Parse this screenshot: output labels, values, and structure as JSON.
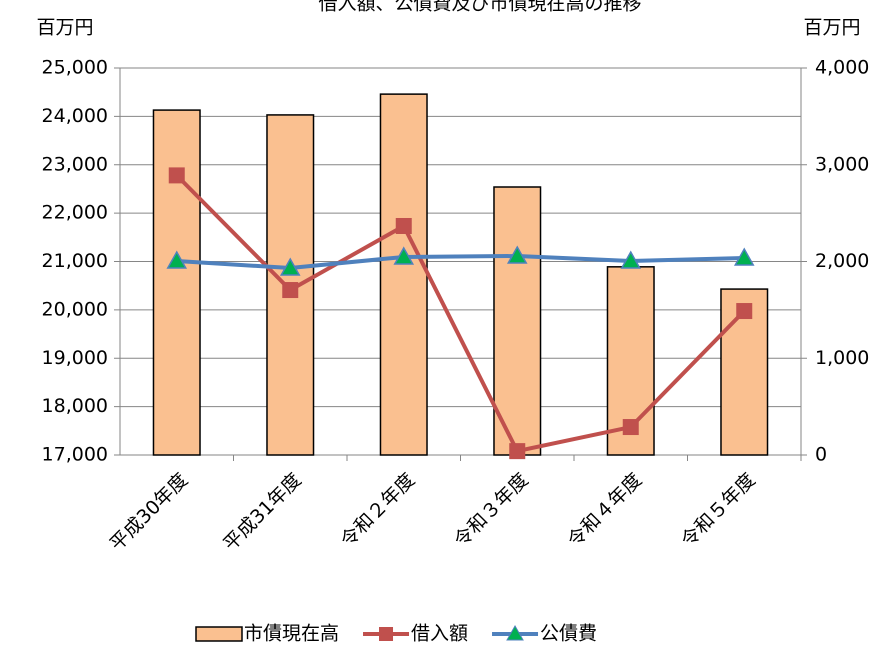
{
  "chart_data": {
    "type": "bar-line",
    "title": "借入額、公債費及び市債現在高の推移",
    "y_unit": "百万円",
    "y2_unit": "百万円",
    "categories": [
      "平成30年度",
      "平成31年度",
      "令和２年度",
      "令和３年度",
      "令和４年度",
      "令和５年度"
    ],
    "series": [
      {
        "name": "市債現在高",
        "type": "bar",
        "color": "#fac090",
        "values": [
          24130,
          24030,
          24460,
          22540,
          20890,
          20430
        ]
      },
      {
        "name": "借入額",
        "type": "line",
        "marker": "square",
        "color": "#c0504d",
        "axis": "y2",
        "values": [
          2890,
          1705,
          2367,
          40,
          289,
          1488
        ]
      },
      {
        "name": "公債費",
        "type": "line",
        "marker": "triangle",
        "color": "#4f81bd",
        "marker_color": "#00b050",
        "axis": "y2",
        "values": [
          2005,
          1933,
          2047,
          2057,
          2005,
          2036
        ]
      }
    ],
    "ylim": [
      17000,
      25000
    ],
    "yticks": [
      {
        "value": 17000,
        "label": "17,000"
      },
      {
        "value": 18000,
        "label": "18,000"
      },
      {
        "value": 19000,
        "label": "19,000"
      },
      {
        "value": 20000,
        "label": "20,000"
      },
      {
        "value": 21000,
        "label": "21,000"
      },
      {
        "value": 22000,
        "label": "22,000"
      },
      {
        "value": 23000,
        "label": "23,000"
      },
      {
        "value": 24000,
        "label": "24,000"
      },
      {
        "value": 25000,
        "label": "25,000"
      }
    ],
    "y2lim": [
      0,
      4000
    ],
    "y2ticks": [
      0,
      {
        "value": 1000,
        "label": "1,000"
      },
      {
        "value": 2000,
        "label": "2,000"
      },
      {
        "value": 3000,
        "label": "3,000"
      },
      {
        "value": 4000,
        "label": "4,000"
      }
    ],
    "grid": true
  }
}
